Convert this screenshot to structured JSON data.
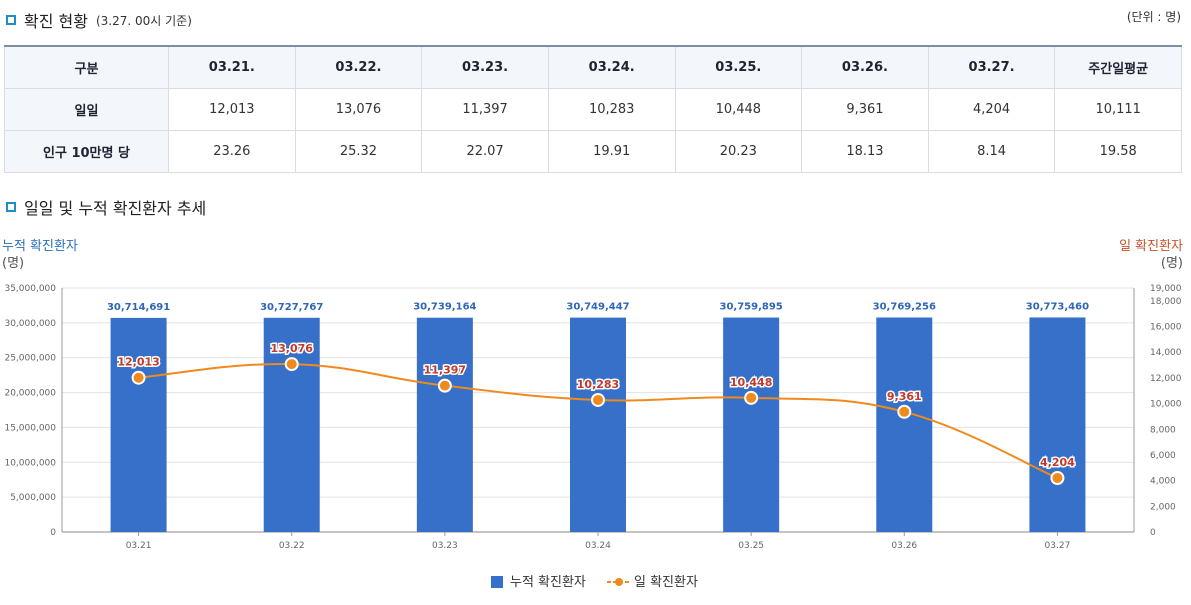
{
  "status_section": {
    "title": "확진 현황",
    "subtitle": "(3.27. 00시 기준)",
    "unit": "(단위 : 명)"
  },
  "table": {
    "headers": [
      "구분",
      "03.21.",
      "03.22.",
      "03.23.",
      "03.24.",
      "03.25.",
      "03.26.",
      "03.27.",
      "주간일평균"
    ],
    "rows": [
      {
        "label": "일일",
        "cells": [
          "12,013",
          "13,076",
          "11,397",
          "10,283",
          "10,448",
          "9,361",
          "4,204",
          "10,111"
        ]
      },
      {
        "label": "인구 10만명 당",
        "cells": [
          "23.26",
          "25.32",
          "22.07",
          "19.91",
          "20.23",
          "18.13",
          "8.14",
          "19.58"
        ]
      }
    ]
  },
  "trend_section": {
    "title": "일일 및 누적 확진환자 추세"
  },
  "chart_data": {
    "type": "bar+line",
    "categories": [
      "03.21",
      "03.22",
      "03.23",
      "03.24",
      "03.25",
      "03.26",
      "03.27"
    ],
    "series": [
      {
        "name": "누적 확진환자",
        "type": "bar",
        "axis": "left",
        "color": "#3670c8",
        "values": [
          30714691,
          30727767,
          30739164,
          30749447,
          30759895,
          30769256,
          30773460
        ],
        "labels": [
          "30,714,691",
          "30,727,767",
          "30,739,164",
          "30,749,447",
          "30,759,895",
          "30,769,256",
          "30,773,460"
        ]
      },
      {
        "name": "일 확진환자",
        "type": "line",
        "axis": "right",
        "color": "#f08a1c",
        "values": [
          12013,
          13076,
          11397,
          10283,
          10448,
          9361,
          4204
        ],
        "labels": [
          "12,013",
          "13,076",
          "11,397",
          "10,283",
          "10,448",
          "9,361",
          "4,204"
        ]
      }
    ],
    "left_axis": {
      "title": "누적 확진환자",
      "unit": "(명)",
      "ylim": [
        0,
        35000000
      ],
      "ticks": [
        "0",
        "5,000,000",
        "10,000,000",
        "15,000,000",
        "20,000,000",
        "25,000,000",
        "30,000,000",
        "35,000,000"
      ],
      "tick_values": [
        0,
        5000000,
        10000000,
        15000000,
        20000000,
        25000000,
        30000000,
        35000000
      ],
      "color": "#2a6ebb"
    },
    "right_axis": {
      "title": "일 확진환자",
      "unit": "(명)",
      "ylim": [
        0,
        19000
      ],
      "ticks": [
        "0",
        "2,000",
        "4,000",
        "6,000",
        "8,000",
        "10,000",
        "12,000",
        "14,000",
        "16,000",
        "18,000",
        "19,000"
      ],
      "tick_values": [
        0,
        2000,
        4000,
        6000,
        8000,
        10000,
        12000,
        14000,
        16000,
        18000,
        19000
      ],
      "color": "#c8502a"
    },
    "legend": [
      "누적 확진환자",
      "일 확진환자"
    ],
    "legend_position": "bottom"
  }
}
